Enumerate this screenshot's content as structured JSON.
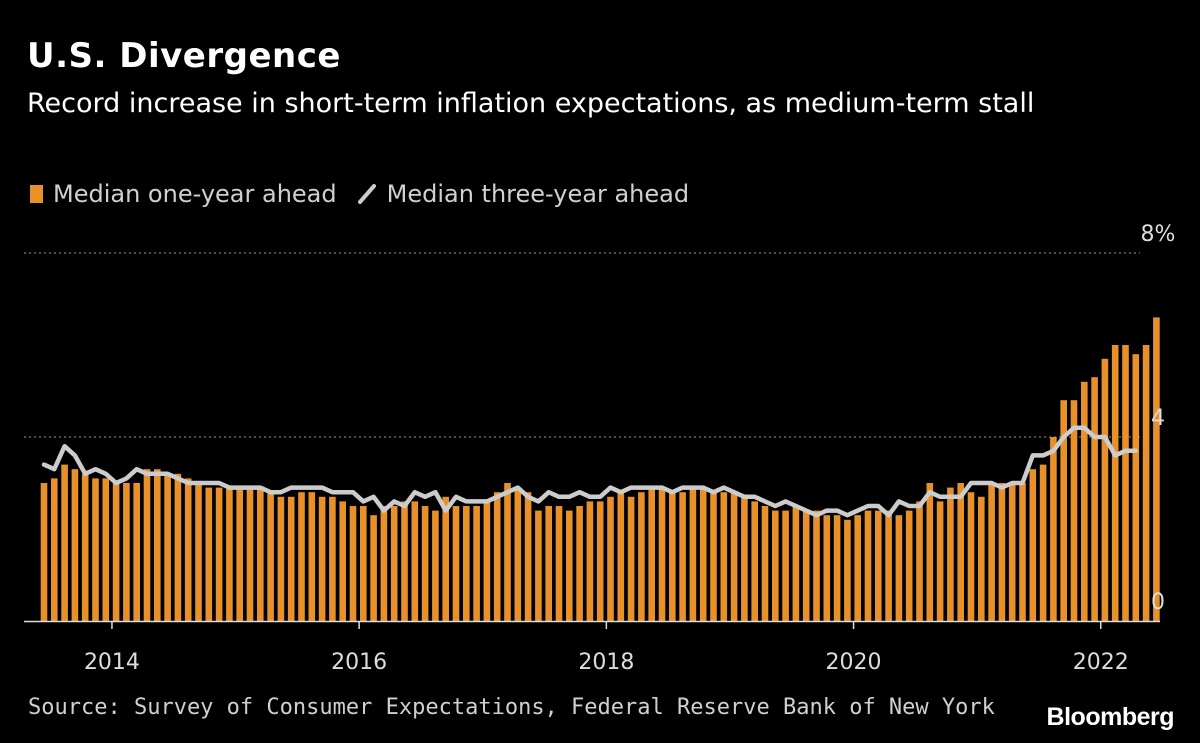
{
  "title": "U.S. Divergence",
  "subtitle": "Record increase in short-term inflation expectations, as medium-term stall",
  "legend": {
    "bar_label": "Median one-year ahead",
    "line_label": "Median three-year ahead"
  },
  "source": "Source: Survey of Consumer Expectations, Federal Reserve Bank of New York",
  "brand": "Bloomberg",
  "colors": {
    "bar": "#E8912B",
    "line": "#CCCCCC",
    "grid": "#777777",
    "axis": "#DDDDDD"
  },
  "chart_data": {
    "type": "bar",
    "title": "U.S. Divergence",
    "subtitle": "Record increase in short-term inflation expectations, as medium-term stall",
    "x_start": "2013-06",
    "frequency": "monthly",
    "ylim": [
      0,
      8
    ],
    "y_ticks": [
      0,
      4,
      8
    ],
    "y_tick_labels": [
      "0",
      "4",
      "8%"
    ],
    "x_ticks": [
      {
        "label": "2014",
        "month_index": 7
      },
      {
        "label": "2016",
        "month_index": 31
      },
      {
        "label": "2018",
        "month_index": 55
      },
      {
        "label": "2020",
        "month_index": 79
      },
      {
        "label": "2022",
        "month_index": 103
      }
    ],
    "grid": "dotted horizontal at 4 and 8",
    "legend_position": "top-left",
    "series": [
      {
        "name": "Median one-year ahead",
        "kind": "bar",
        "values": [
          3.0,
          3.1,
          3.4,
          3.3,
          3.2,
          3.1,
          3.1,
          3.0,
          3.0,
          3.0,
          3.3,
          3.3,
          3.2,
          3.2,
          3.1,
          3.0,
          2.9,
          2.9,
          2.9,
          2.9,
          2.9,
          2.9,
          2.8,
          2.7,
          2.7,
          2.8,
          2.8,
          2.7,
          2.7,
          2.6,
          2.5,
          2.5,
          2.3,
          2.5,
          2.5,
          2.6,
          2.6,
          2.5,
          2.4,
          2.7,
          2.5,
          2.5,
          2.5,
          2.6,
          2.8,
          3.0,
          2.9,
          2.8,
          2.4,
          2.5,
          2.5,
          2.4,
          2.5,
          2.6,
          2.6,
          2.7,
          2.8,
          2.7,
          2.8,
          2.9,
          2.9,
          2.8,
          2.8,
          2.9,
          2.9,
          2.8,
          2.8,
          2.8,
          2.7,
          2.6,
          2.5,
          2.4,
          2.4,
          2.5,
          2.4,
          2.4,
          2.3,
          2.3,
          2.2,
          2.3,
          2.4,
          2.4,
          2.4,
          2.3,
          2.4,
          2.6,
          3.0,
          2.6,
          2.9,
          3.0,
          2.8,
          2.7,
          3.0,
          3.0,
          3.0,
          3.0,
          3.3,
          3.4,
          4.0,
          4.8,
          4.8,
          5.2,
          5.3,
          5.7,
          6.0,
          6.0,
          5.8,
          6.0,
          6.6
        ]
      },
      {
        "name": "Median three-year ahead",
        "kind": "line",
        "values": [
          3.4,
          3.3,
          3.8,
          3.6,
          3.2,
          3.3,
          3.2,
          3.0,
          3.1,
          3.3,
          3.2,
          3.2,
          3.2,
          3.1,
          3.0,
          3.0,
          3.0,
          3.0,
          2.9,
          2.9,
          2.9,
          2.9,
          2.8,
          2.8,
          2.9,
          2.9,
          2.9,
          2.9,
          2.8,
          2.8,
          2.8,
          2.6,
          2.7,
          2.4,
          2.6,
          2.5,
          2.8,
          2.7,
          2.8,
          2.4,
          2.7,
          2.6,
          2.6,
          2.6,
          2.7,
          2.8,
          2.9,
          2.7,
          2.6,
          2.8,
          2.7,
          2.7,
          2.8,
          2.7,
          2.7,
          2.9,
          2.8,
          2.9,
          2.9,
          2.9,
          2.9,
          2.8,
          2.9,
          2.9,
          2.9,
          2.8,
          2.9,
          2.8,
          2.7,
          2.7,
          2.6,
          2.5,
          2.6,
          2.5,
          2.4,
          2.3,
          2.4,
          2.4,
          2.3,
          2.4,
          2.5,
          2.5,
          2.3,
          2.6,
          2.5,
          2.5,
          2.8,
          2.7,
          2.7,
          2.7,
          3.0,
          3.0,
          3.0,
          2.9,
          3.0,
          3.0,
          3.6,
          3.6,
          3.7,
          4.0,
          4.2,
          4.2,
          4.0,
          4.0,
          3.6,
          3.7,
          3.7
        ]
      }
    ]
  }
}
